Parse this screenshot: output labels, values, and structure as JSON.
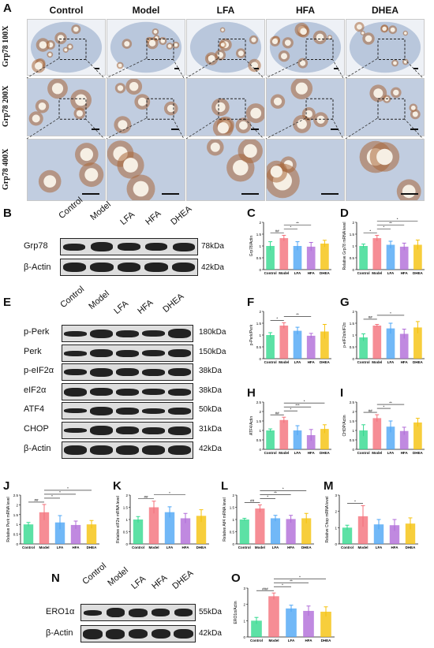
{
  "panel_labels": [
    "A",
    "B",
    "C",
    "D",
    "E",
    "F",
    "G",
    "H",
    "I",
    "J",
    "K",
    "L",
    "M",
    "N",
    "O"
  ],
  "histology": {
    "groups": [
      "Control",
      "Model",
      "LFA",
      "HFA",
      "DHEA"
    ],
    "rows": [
      "Grp78  100X",
      "Grp78  200X",
      "Grp78  400X"
    ]
  },
  "blot_B": {
    "lanes": [
      "Control",
      "Model",
      "LFA",
      "HFA",
      "DHEA"
    ],
    "proteins": [
      "Grp78",
      "β-Actin"
    ],
    "sizes": [
      "78kDa",
      "42kDa"
    ]
  },
  "blot_E": {
    "lanes": [
      "Control",
      "Model",
      "LFA",
      "HFA",
      "DHEA"
    ],
    "proteins": [
      "p-Perk",
      "Perk",
      "p-eIF2α",
      "eIF2α",
      "ATF4",
      "CHOP",
      "β-Actin"
    ],
    "sizes": [
      "180kDa",
      "150kDa",
      "38kDa",
      "38kDa",
      "50kDa",
      "31kDa",
      "42kDa"
    ]
  },
  "blot_N": {
    "lanes": [
      "Control",
      "Model",
      "LFA",
      "HFA",
      "DHEA"
    ],
    "proteins": [
      "ERO1α",
      "β-Actin"
    ],
    "sizes": [
      "55kDa",
      "42kDa"
    ]
  },
  "colors": {
    "Control": "#33d98f",
    "Model": "#f4707a",
    "LFA": "#4da6f5",
    "HFA": "#b06bd8",
    "DHEA": "#f5c20b",
    "tissue_blue": "#b9c7dc",
    "stain_brown": "#a9683a"
  },
  "chart_data": [
    {
      "id": "C",
      "type": "bar",
      "categories": [
        "Control",
        "Model",
        "LFA",
        "HFA",
        "DHEA"
      ],
      "values": [
        1.0,
        1.33,
        1.0,
        0.97,
        1.1
      ],
      "errors": [
        0.18,
        0.12,
        0.18,
        0.18,
        0.14
      ],
      "ylabel": "Grp78/Actin",
      "ylim": [
        0,
        2.0
      ],
      "ticks": [
        0,
        0.5,
        1.0,
        1.5,
        2.0
      ],
      "sig": [
        {
          "from": 0,
          "to": 1,
          "label": "##"
        },
        {
          "from": 1,
          "to": 2,
          "label": "*"
        },
        {
          "from": 1,
          "to": 3,
          "label": "**"
        }
      ]
    },
    {
      "id": "D",
      "type": "bar",
      "categories": [
        "Control",
        "Model",
        "LFA",
        "HFA",
        "DHEA"
      ],
      "values": [
        1.0,
        1.33,
        1.05,
        0.97,
        1.05
      ],
      "errors": [
        0.08,
        0.12,
        0.15,
        0.15,
        0.2
      ],
      "ylabel": "Relative Grp78 mRNA level",
      "ylim": [
        0,
        2.0
      ],
      "ticks": [
        0,
        0.5,
        1.0,
        1.5,
        2.0
      ],
      "sig": [
        {
          "from": 0,
          "to": 1,
          "label": "*"
        },
        {
          "from": 1,
          "to": 2,
          "label": "*"
        },
        {
          "from": 1,
          "to": 3,
          "label": "**"
        },
        {
          "from": 1,
          "to": 4,
          "label": "*"
        }
      ]
    },
    {
      "id": "F",
      "type": "bar",
      "categories": [
        "Control",
        "Model",
        "LFA",
        "HFA",
        "DHEA"
      ],
      "values": [
        1.0,
        1.4,
        1.18,
        0.97,
        1.15
      ],
      "errors": [
        0.1,
        0.12,
        0.15,
        0.1,
        0.3
      ],
      "ylabel": "p-Perk/Perk",
      "ylim": [
        0,
        2.0
      ],
      "ticks": [
        0,
        0.5,
        1.0,
        1.5,
        2.0
      ],
      "sig": [
        {
          "from": 0,
          "to": 1,
          "label": "*"
        },
        {
          "from": 1,
          "to": 3,
          "label": "**"
        }
      ]
    },
    {
      "id": "G",
      "type": "bar",
      "categories": [
        "Control",
        "Model",
        "LFA",
        "HFA",
        "DHEA"
      ],
      "values": [
        0.9,
        1.4,
        1.28,
        1.05,
        1.32
      ],
      "errors": [
        0.15,
        0.05,
        0.22,
        0.2,
        0.25
      ],
      "ylabel": "p-eIF2α/eIF2α",
      "ylim": [
        0,
        2.0
      ],
      "ticks": [
        0,
        0.5,
        1.0,
        1.5,
        2.0
      ],
      "sig": [
        {
          "from": 0,
          "to": 1,
          "label": "##"
        },
        {
          "from": 1,
          "to": 3,
          "label": "*"
        }
      ]
    },
    {
      "id": "H",
      "type": "bar",
      "categories": [
        "Control",
        "Model",
        "LFA",
        "HFA",
        "DHEA"
      ],
      "values": [
        1.0,
        1.55,
        1.0,
        0.75,
        1.08
      ],
      "errors": [
        0.08,
        0.15,
        0.25,
        0.3,
        0.22
      ],
      "ylabel": "ATF4/Actin",
      "ylim": [
        0,
        2.5
      ],
      "ticks": [
        0,
        0.5,
        1.0,
        1.5,
        2.0,
        2.5
      ],
      "sig": [
        {
          "from": 0,
          "to": 1,
          "label": "##"
        },
        {
          "from": 1,
          "to": 2,
          "label": "*"
        },
        {
          "from": 1,
          "to": 3,
          "label": "***"
        },
        {
          "from": 1,
          "to": 4,
          "label": "*"
        }
      ]
    },
    {
      "id": "I",
      "type": "bar",
      "categories": [
        "Control",
        "Model",
        "LFA",
        "HFA",
        "DHEA"
      ],
      "values": [
        1.0,
        1.65,
        1.2,
        0.97,
        1.42
      ],
      "errors": [
        0.3,
        0.18,
        0.3,
        0.2,
        0.22
      ],
      "ylabel": "CHOP/Actin",
      "ylim": [
        0,
        2.5
      ],
      "ticks": [
        0,
        0.5,
        1.0,
        1.5,
        2.0,
        2.5
      ],
      "sig": [
        {
          "from": 0,
          "to": 1,
          "label": "##"
        },
        {
          "from": 1,
          "to": 2,
          "label": "*"
        },
        {
          "from": 1,
          "to": 3,
          "label": "**"
        }
      ]
    },
    {
      "id": "J",
      "type": "bar",
      "categories": [
        "Control",
        "Model",
        "LFA",
        "HFA",
        "DHEA"
      ],
      "values": [
        1.0,
        1.62,
        1.1,
        0.97,
        1.0
      ],
      "errors": [
        0.1,
        0.4,
        0.35,
        0.2,
        0.2
      ],
      "ylabel": "Relative Perk mRNA level",
      "ylim": [
        0,
        2.5
      ],
      "ticks": [
        0,
        0.5,
        1.0,
        1.5,
        2.0,
        2.5
      ],
      "sig": [
        {
          "from": 0,
          "to": 1,
          "label": "##"
        },
        {
          "from": 1,
          "to": 2,
          "label": "*"
        },
        {
          "from": 1,
          "to": 3,
          "label": "*"
        },
        {
          "from": 1,
          "to": 4,
          "label": "*"
        }
      ]
    },
    {
      "id": "K",
      "type": "bar",
      "categories": [
        "Control",
        "Model",
        "LFA",
        "HFA",
        "DHEA"
      ],
      "values": [
        1.0,
        1.5,
        1.3,
        1.05,
        1.15
      ],
      "errors": [
        0.12,
        0.25,
        0.22,
        0.2,
        0.25
      ],
      "ylabel": "Relative eIF2α mRNA level",
      "ylim": [
        0,
        2.0
      ],
      "ticks": [
        0,
        0.5,
        1.0,
        1.5,
        2.0
      ],
      "sig": [
        {
          "from": 0,
          "to": 1,
          "label": "##"
        },
        {
          "from": 1,
          "to": 3,
          "label": "*"
        }
      ]
    },
    {
      "id": "L",
      "type": "bar",
      "categories": [
        "Control",
        "Model",
        "LFA",
        "HFA",
        "DHEA"
      ],
      "values": [
        1.0,
        1.45,
        1.05,
        1.02,
        1.05
      ],
      "errors": [
        0.05,
        0.15,
        0.12,
        0.15,
        0.2
      ],
      "ylabel": "Relative Atf4 mRNA level",
      "ylim": [
        0,
        2.0
      ],
      "ticks": [
        0,
        0.5,
        1.0,
        1.5,
        2.0
      ],
      "sig": [
        {
          "from": 0,
          "to": 1,
          "label": "##"
        },
        {
          "from": 1,
          "to": 2,
          "label": "*"
        },
        {
          "from": 1,
          "to": 3,
          "label": "**"
        },
        {
          "from": 1,
          "to": 4,
          "label": "*"
        }
      ]
    },
    {
      "id": "M",
      "type": "bar",
      "categories": [
        "Control",
        "Model",
        "LFA",
        "HFA",
        "DHEA"
      ],
      "values": [
        1.0,
        1.7,
        1.2,
        1.15,
        1.25
      ],
      "errors": [
        0.15,
        0.65,
        0.3,
        0.35,
        0.35
      ],
      "ylabel": "Relative Chop mRNA level",
      "ylim": [
        0,
        3.0
      ],
      "ticks": [
        0,
        1,
        2,
        3
      ],
      "sig": [
        {
          "from": 0,
          "to": 1,
          "label": "*"
        }
      ]
    },
    {
      "id": "O",
      "type": "bar",
      "categories": [
        "Control",
        "Model",
        "LFA",
        "HFA",
        "DHEA"
      ],
      "values": [
        1.0,
        2.5,
        1.75,
        1.6,
        1.55
      ],
      "errors": [
        0.2,
        0.2,
        0.2,
        0.3,
        0.3
      ],
      "ylabel": "ERO1α/Actin",
      "ylim": [
        0,
        3.0
      ],
      "ticks": [
        0,
        1,
        2,
        3
      ],
      "sig": [
        {
          "from": 0,
          "to": 1,
          "label": "###"
        },
        {
          "from": 1,
          "to": 2,
          "label": "*"
        },
        {
          "from": 1,
          "to": 3,
          "label": "**"
        },
        {
          "from": 1,
          "to": 4,
          "label": "*"
        }
      ]
    }
  ]
}
